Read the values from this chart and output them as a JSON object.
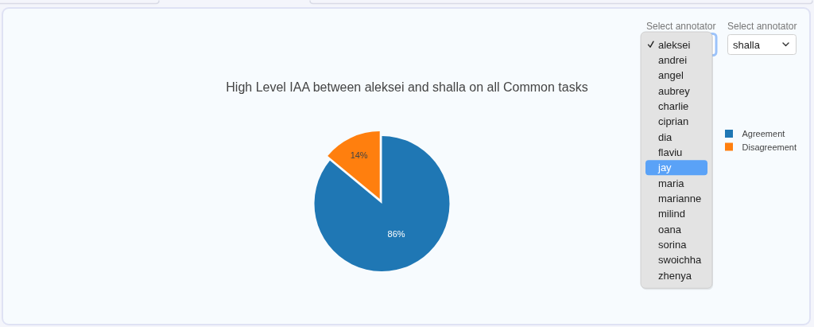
{
  "chart_data": {
    "type": "pie",
    "title": "High Level IAA between aleksei and shalla on all Common tasks",
    "categories": [
      "Agreement",
      "Disagreement"
    ],
    "values": [
      86,
      14
    ],
    "colors": [
      "#1f77b4",
      "#ff7f0e"
    ],
    "value_labels": [
      "86%",
      "14%"
    ],
    "legend": "right",
    "annotations": [
      "Select annotator",
      "Select annotator",
      "shalla",
      "aleksei",
      "andrei",
      "angel",
      "aubrey",
      "charlie",
      "ciprian",
      "dia",
      "flaviu",
      "jay",
      "maria",
      "marianne",
      "milind",
      "oana",
      "sorina",
      "swoichha",
      "zhenya"
    ]
  }
}
